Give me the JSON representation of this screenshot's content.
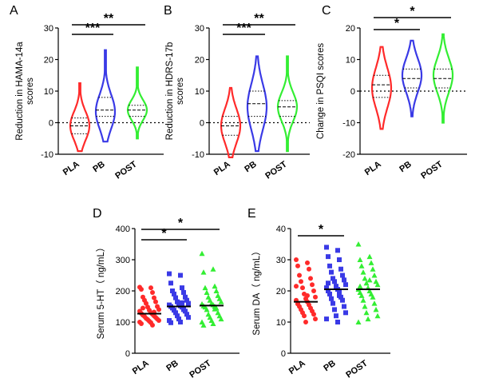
{
  "colors": {
    "PLA": "#ff2a2a",
    "PB": "#3a3ae6",
    "POST": "#33ee33",
    "axis": "#000000"
  },
  "chart_data": [
    {
      "panel": "A",
      "type": "violin",
      "ylabel": [
        "Reduction in  HAMA-14a",
        "scores"
      ],
      "ylim": [
        -10,
        30
      ],
      "yticks": [
        -10,
        0,
        10,
        20,
        30
      ],
      "zero_line": true,
      "categories": [
        "PLA",
        "PB",
        "POST"
      ],
      "series": [
        {
          "category": "PLA",
          "min": -9,
          "max": 12.5,
          "q1": -3.5,
          "median": -1,
          "q3": 1.5,
          "peak": -1
        },
        {
          "category": "PB",
          "min": -6,
          "max": 23,
          "q1": 2,
          "median": 4,
          "q3": 8,
          "peak": 3.5
        },
        {
          "category": "POST",
          "min": -5,
          "max": 17.5,
          "q1": 2,
          "median": 4,
          "q3": 5.5,
          "peak": 4
        }
      ],
      "significance": [
        {
          "from": "PLA",
          "to": "PB",
          "label": "***"
        },
        {
          "from": "PLA",
          "to": "POST",
          "label": "**"
        }
      ]
    },
    {
      "panel": "B",
      "type": "violin",
      "ylabel": [
        "Reduction in  HDRS-17b",
        "scores"
      ],
      "ylim": [
        -10,
        30
      ],
      "yticks": [
        -10,
        0,
        10,
        20,
        30
      ],
      "zero_line": true,
      "categories": [
        "PLA",
        "PB",
        "POST"
      ],
      "series": [
        {
          "category": "PLA",
          "min": -11,
          "max": 11,
          "q1": -4,
          "median": -1,
          "q3": 2,
          "peak": -1
        },
        {
          "category": "PB",
          "min": -9,
          "max": 21,
          "q1": 2,
          "median": 6,
          "q3": 10,
          "peak": 5
        },
        {
          "category": "POST",
          "min": -9,
          "max": 21,
          "q1": 2,
          "median": 5,
          "q3": 7,
          "peak": 5
        }
      ],
      "significance": [
        {
          "from": "PLA",
          "to": "PB",
          "label": "***"
        },
        {
          "from": "PLA",
          "to": "POST",
          "label": "**"
        }
      ]
    },
    {
      "panel": "C",
      "type": "violin",
      "ylabel": [
        "Change in PSQI scores"
      ],
      "ylim": [
        -20,
        20
      ],
      "yticks": [
        -20,
        -10,
        0,
        10,
        20
      ],
      "zero_line": true,
      "categories": [
        "PLA",
        "PB",
        "POST"
      ],
      "series": [
        {
          "category": "PLA",
          "min": -12,
          "max": 14,
          "q1": -2,
          "median": 2,
          "q3": 5,
          "peak": 1
        },
        {
          "category": "PB",
          "min": -8,
          "max": 16,
          "q1": 1,
          "median": 4,
          "q3": 7,
          "peak": 5
        },
        {
          "category": "POST",
          "min": -10,
          "max": 18,
          "q1": 1,
          "median": 4,
          "q3": 7,
          "peak": 5
        }
      ],
      "significance": [
        {
          "from": "PLA",
          "to": "PB",
          "label": "*"
        },
        {
          "from": "PLA",
          "to": "POST",
          "label": "*"
        }
      ]
    },
    {
      "panel": "D",
      "type": "scatter",
      "ylabel": [
        "Serum 5-HT（ ng/mL）"
      ],
      "ylim": [
        0,
        400
      ],
      "yticks": [
        0,
        100,
        200,
        300,
        400
      ],
      "categories": [
        "PLA",
        "PB",
        "POST"
      ],
      "series": [
        {
          "category": "PLA",
          "marker": "circle",
          "median": 127,
          "values": [
            212,
            210,
            205,
            195,
            180,
            178,
            170,
            165,
            160,
            150,
            148,
            140,
            138,
            135,
            130,
            128,
            125,
            122,
            120,
            118,
            115,
            112,
            110,
            108,
            105,
            103,
            100,
            98,
            95,
            90,
            145,
            132
          ]
        },
        {
          "category": "PB",
          "marker": "square",
          "median": 150,
          "values": [
            255,
            250,
            225,
            210,
            200,
            195,
            190,
            180,
            178,
            170,
            165,
            160,
            158,
            155,
            152,
            150,
            148,
            145,
            140,
            138,
            135,
            130,
            125,
            120,
            115,
            110,
            105,
            100,
            98,
            162
          ]
        },
        {
          "category": "POST",
          "marker": "triangle",
          "median": 153,
          "values": [
            320,
            270,
            260,
            215,
            210,
            200,
            195,
            185,
            180,
            175,
            170,
            165,
            160,
            158,
            155,
            152,
            150,
            148,
            145,
            140,
            130,
            125,
            120,
            115,
            110,
            105,
            100,
            95,
            90,
            142
          ]
        }
      ],
      "significance": [
        {
          "from": "PLA",
          "to": "PB",
          "label": "*"
        },
        {
          "from": "PLA",
          "to": "POST",
          "label": "*"
        }
      ]
    },
    {
      "panel": "E",
      "type": "scatter",
      "ylabel": [
        "Serum DA（ ng/mL）"
      ],
      "ylim": [
        0,
        40
      ],
      "yticks": [
        0,
        10,
        20,
        30,
        40
      ],
      "categories": [
        "PLA",
        "PB",
        "POST"
      ],
      "series": [
        {
          "category": "PLA",
          "marker": "circle",
          "median": 16.5,
          "values": [
            30,
            29,
            28,
            27,
            25,
            24,
            23,
            22,
            21,
            20,
            19,
            18,
            17.5,
            17,
            16.5,
            16,
            15.5,
            15,
            14.5,
            14,
            13.5,
            13,
            12.5,
            12,
            11,
            10,
            21.5,
            18.5,
            15.8
          ]
        },
        {
          "category": "PB",
          "marker": "square",
          "median": 20.5,
          "values": [
            34,
            33,
            31,
            30,
            28,
            27,
            26,
            25,
            24,
            23.5,
            23,
            22,
            21.5,
            21,
            20.5,
            20,
            19.5,
            19,
            18,
            17.5,
            17,
            16,
            15,
            14,
            13,
            12,
            11,
            10,
            22.5,
            18.5
          ]
        },
        {
          "category": "POST",
          "marker": "triangle",
          "median": 20.5,
          "values": [
            35,
            31,
            30,
            29,
            28,
            27,
            26,
            25,
            24,
            23,
            22.5,
            22,
            21,
            20.5,
            20,
            19.5,
            19,
            18.5,
            18,
            17,
            16,
            15,
            14,
            13,
            12,
            11,
            10,
            23.5,
            21.5
          ]
        }
      ],
      "significance": [
        {
          "from": "PLA",
          "to": "PB",
          "label": "*"
        }
      ]
    }
  ]
}
